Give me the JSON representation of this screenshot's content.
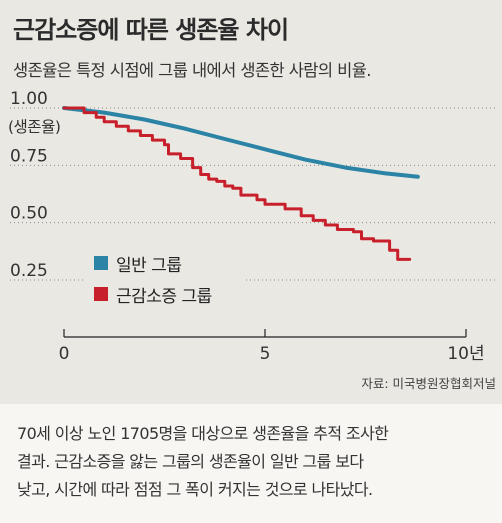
{
  "title": "근감소증에 따른 생존율 차이",
  "subtitle": "생존율은 특정 시점에 그룹 내에서 생존한 사람의 비율.",
  "source": "자료: 미국병원장협회저널",
  "note": {
    "lines": [
      "70세 이상 노인 1705명을 대상으로 생존율을 추적 조사한",
      "결과. 근감소증을 앓는 그룹의 생존율이 일반 그룹 보다",
      "낮고, 시간에 따라 점점 그 폭이 커지는 것으로 나타났다."
    ]
  },
  "colors": {
    "normal": "#2b84a6",
    "sarcopenia": "#c8202b",
    "background": "#eae8e3"
  },
  "chart_data": {
    "type": "line",
    "title": "근감소증에 따른 생존율 차이",
    "ylabel": "(생존율)",
    "xlabel": "",
    "xlim": [
      0,
      10
    ],
    "ylim": [
      0.2,
      1.0
    ],
    "yticks": [
      {
        "value": 1.0,
        "label": "1.00"
      },
      {
        "value": 0.75,
        "label": "0.75"
      },
      {
        "value": 0.5,
        "label": "0.50"
      },
      {
        "value": 0.25,
        "label": "0.25"
      }
    ],
    "xticks": [
      {
        "value": 0,
        "label": "0"
      },
      {
        "value": 5,
        "label": "5"
      },
      {
        "value": 10,
        "label": "10년"
      }
    ],
    "grid": "horizontal dotted",
    "legend_position": "lower-left",
    "series": [
      {
        "name": "일반 그룹",
        "color": "#2b84a6",
        "step": false,
        "points": [
          [
            0,
            1.0
          ],
          [
            1,
            0.98
          ],
          [
            2,
            0.95
          ],
          [
            3,
            0.91
          ],
          [
            4,
            0.865
          ],
          [
            5,
            0.82
          ],
          [
            6,
            0.775
          ],
          [
            7,
            0.74
          ],
          [
            8,
            0.715
          ],
          [
            8.8,
            0.7
          ]
        ]
      },
      {
        "name": "근감소증 그룹",
        "color": "#c8202b",
        "step": true,
        "points": [
          [
            0,
            1.0
          ],
          [
            0.5,
            0.98
          ],
          [
            0.8,
            0.96
          ],
          [
            1.0,
            0.94
          ],
          [
            1.3,
            0.92
          ],
          [
            1.6,
            0.9
          ],
          [
            1.9,
            0.88
          ],
          [
            2.2,
            0.86
          ],
          [
            2.5,
            0.84
          ],
          [
            2.6,
            0.8
          ],
          [
            2.9,
            0.78
          ],
          [
            3.2,
            0.74
          ],
          [
            3.4,
            0.71
          ],
          [
            3.6,
            0.69
          ],
          [
            3.8,
            0.68
          ],
          [
            4.0,
            0.66
          ],
          [
            4.2,
            0.65
          ],
          [
            4.4,
            0.62
          ],
          [
            4.8,
            0.6
          ],
          [
            5.0,
            0.58
          ],
          [
            5.5,
            0.56
          ],
          [
            5.9,
            0.53
          ],
          [
            6.2,
            0.51
          ],
          [
            6.5,
            0.49
          ],
          [
            6.8,
            0.47
          ],
          [
            7.2,
            0.46
          ],
          [
            7.4,
            0.43
          ],
          [
            7.7,
            0.42
          ],
          [
            8.1,
            0.38
          ],
          [
            8.3,
            0.34
          ],
          [
            8.6,
            0.34
          ]
        ]
      }
    ]
  }
}
